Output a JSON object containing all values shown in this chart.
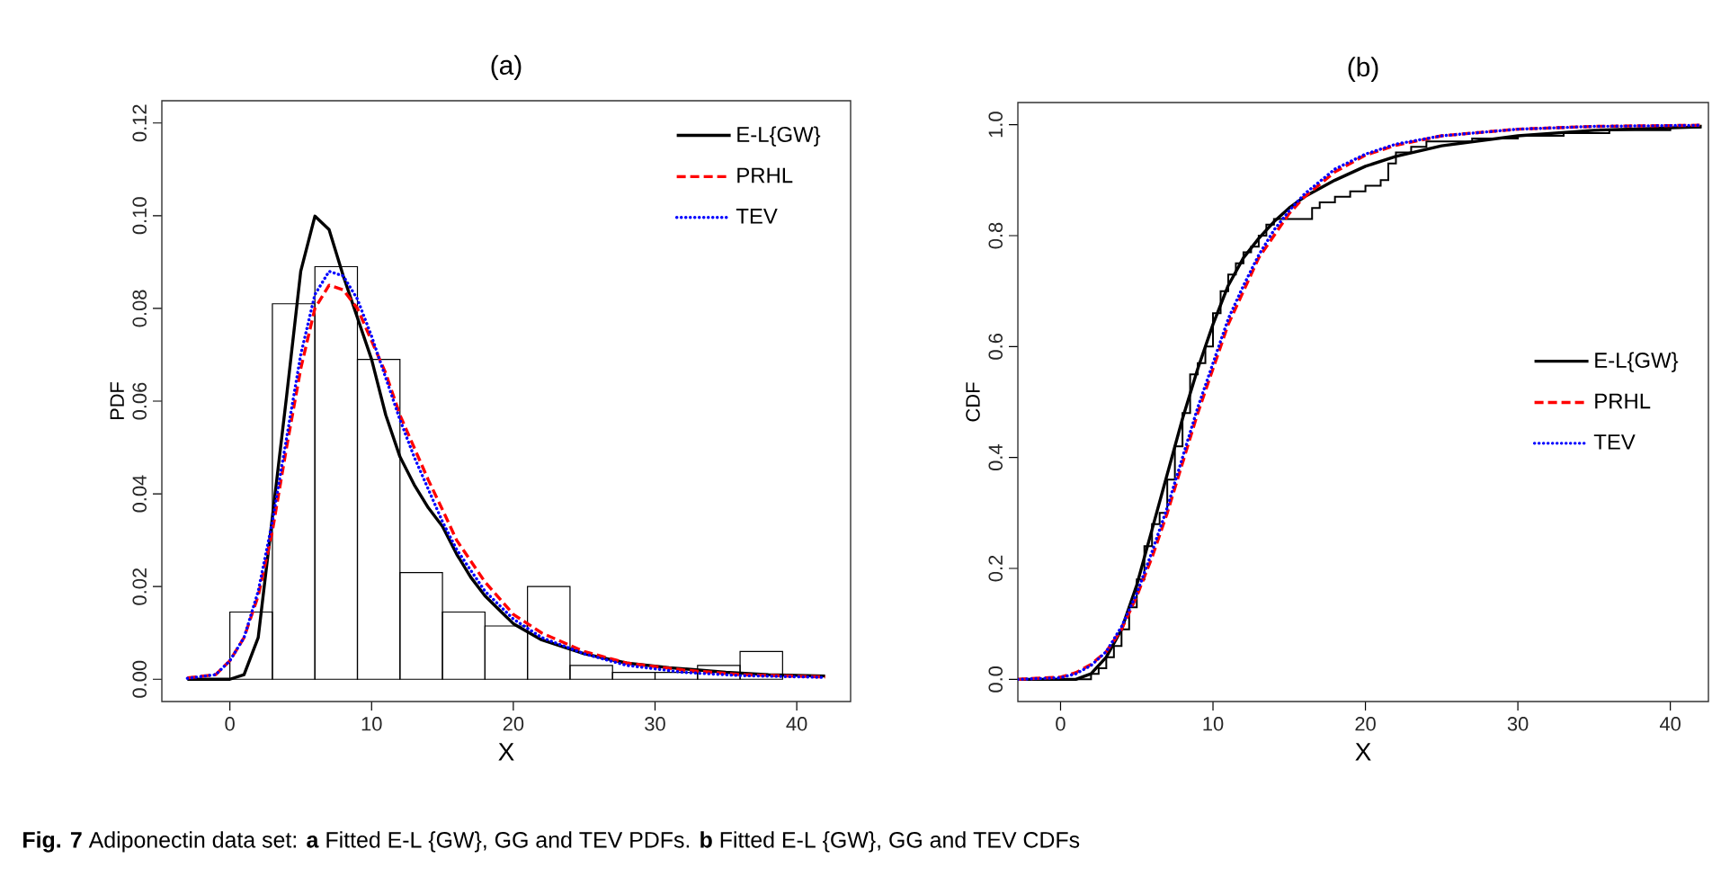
{
  "chart_data": [
    {
      "type": "histogram",
      "title": "(a)",
      "xlabel": "X",
      "ylabel": "PDF",
      "xlim": [
        -4.8,
        43.8
      ],
      "ylim": [
        -0.0048,
        0.1248
      ],
      "xticks": [
        0,
        10,
        20,
        30,
        40
      ],
      "yticks": [
        {
          "value": 0,
          "label": "0.00"
        },
        {
          "value": 0.02,
          "label": "0.02"
        },
        {
          "value": 0.04,
          "label": "0.04"
        },
        {
          "value": 0.06,
          "label": "0.06"
        },
        {
          "value": 0.08,
          "label": "0.08"
        },
        {
          "value": 0.1,
          "label": "0.10"
        },
        {
          "value": 0.12,
          "label": "0.12"
        }
      ],
      "legend": "top right",
      "series": [
        {
          "color": "#000000",
          "bins": [
            0,
            3,
            6,
            9,
            12,
            15,
            18,
            21,
            24,
            27,
            30,
            33,
            36,
            39
          ],
          "values": [
            0.0145,
            0.081,
            0.089,
            0.069,
            0.023,
            0.0145,
            0.0115,
            0.02,
            0.003,
            0.0015,
            0.0015,
            0.003,
            0.006
          ]
        },
        {
          "name": "E-L{GW}",
          "type": "line",
          "line_style": "solid",
          "color": "#000000",
          "x": [
            -3,
            0,
            1,
            2,
            3,
            4,
            5,
            6,
            7,
            8,
            9,
            10,
            11,
            12,
            13,
            14,
            15,
            16,
            17,
            18,
            19,
            20,
            22,
            25,
            28,
            31,
            35,
            38,
            42
          ],
          "values": [
            0,
            0,
            0.001,
            0.009,
            0.035,
            0.061,
            0.088,
            0.0999,
            0.097,
            0.087,
            0.078,
            0.069,
            0.057,
            0.048,
            0.042,
            0.037,
            0.033,
            0.027,
            0.022,
            0.018,
            0.015,
            0.012,
            0.0085,
            0.0055,
            0.0035,
            0.0025,
            0.0015,
            0.001,
            0.0007
          ]
        },
        {
          "name": "PRHL",
          "type": "line",
          "line_style": "dashed",
          "color": "#ff0000",
          "x": [
            -3,
            -1,
            0,
            1,
            2,
            3,
            4,
            5,
            6,
            7,
            8,
            9,
            10,
            11,
            12,
            13,
            14,
            15,
            16,
            18,
            20,
            22,
            25,
            28,
            32,
            36,
            42
          ],
          "values": [
            0.0003,
            0.001,
            0.004,
            0.009,
            0.018,
            0.032,
            0.05,
            0.067,
            0.08,
            0.085,
            0.084,
            0.08,
            0.073,
            0.066,
            0.057,
            0.05,
            0.043,
            0.0366,
            0.03,
            0.021,
            0.014,
            0.01,
            0.006,
            0.0035,
            0.002,
            0.001,
            0.0005
          ]
        },
        {
          "name": "TEV",
          "type": "line",
          "line_style": "dotted",
          "color": "#0000ff",
          "x": [
            -3,
            -1,
            0,
            1,
            2,
            3,
            4,
            5,
            6,
            7,
            8,
            9,
            10,
            11,
            12,
            13,
            14,
            15,
            16,
            18,
            20,
            22,
            25,
            28,
            32,
            36,
            42
          ],
          "values": [
            0.0002,
            0.001,
            0.004,
            0.009,
            0.019,
            0.034,
            0.052,
            0.07,
            0.083,
            0.088,
            0.087,
            0.082,
            0.074,
            0.065,
            0.056,
            0.048,
            0.041,
            0.034,
            0.028,
            0.019,
            0.013,
            0.009,
            0.0055,
            0.003,
            0.0015,
            0.0008,
            0.0004
          ]
        }
      ],
      "annotations": [
        "**Fig. 7** Adiponectin data set: **a** Fitted E-L {GW}, GG and TEV PDFs. **b** Fitted E-L {GW}, GG and TEV CDFs"
      ]
    },
    {
      "type": "line",
      "title": "(b)",
      "xlabel": "X",
      "ylabel": "CDF",
      "xlim": [
        -2.8,
        42.5
      ],
      "ylim": [
        -0.04,
        1.04
      ],
      "xticks": [
        0,
        10,
        20,
        30,
        40
      ],
      "yticks": [
        {
          "value": 0,
          "label": "0.0"
        },
        {
          "value": 0.2,
          "label": "0.2"
        },
        {
          "value": 0.4,
          "label": "0.4"
        },
        {
          "value": 0.6,
          "label": "0.6"
        },
        {
          "value": 0.8,
          "label": "0.8"
        },
        {
          "value": 1,
          "label": "1.0"
        }
      ],
      "legend": "right",
      "series": [
        {
          "type": "step",
          "color": "#000000",
          "x": [
            -2.8,
            1.8,
            2,
            2.5,
            3,
            3.5,
            4,
            4.5,
            5,
            5.5,
            6,
            6.5,
            7,
            7.5,
            8,
            8.5,
            9,
            9.5,
            10,
            10.5,
            11,
            11.5,
            12,
            12.5,
            13,
            13.5,
            14,
            16,
            16.5,
            17,
            18,
            19,
            20,
            21,
            21.5,
            22,
            23,
            24,
            27,
            30,
            33,
            36,
            40,
            42
          ],
          "values": [
            0,
            0,
            0.01,
            0.02,
            0.04,
            0.06,
            0.09,
            0.13,
            0.18,
            0.24,
            0.28,
            0.3,
            0.36,
            0.42,
            0.48,
            0.55,
            0.57,
            0.6,
            0.66,
            0.7,
            0.73,
            0.75,
            0.77,
            0.78,
            0.8,
            0.82,
            0.83,
            0.83,
            0.85,
            0.86,
            0.87,
            0.88,
            0.89,
            0.9,
            0.93,
            0.95,
            0.96,
            0.97,
            0.975,
            0.98,
            0.985,
            0.99,
            0.995,
            1.0
          ]
        },
        {
          "name": "E-L{GW}",
          "line_style": "solid",
          "color": "#000000",
          "x": [
            -2.8,
            1,
            2,
            3,
            4,
            5,
            6,
            7,
            8,
            9,
            10,
            11,
            12,
            13,
            14,
            15,
            16,
            18,
            20,
            22,
            25,
            30,
            35,
            42
          ],
          "values": [
            0,
            0,
            0.01,
            0.04,
            0.09,
            0.17,
            0.27,
            0.37,
            0.47,
            0.56,
            0.64,
            0.71,
            0.76,
            0.795,
            0.825,
            0.85,
            0.87,
            0.9,
            0.925,
            0.943,
            0.962,
            0.98,
            0.99,
            0.996
          ]
        },
        {
          "name": "PRHL",
          "line_style": "dashed",
          "color": "#ff0000",
          "x": [
            -2.8,
            0,
            1,
            2,
            3,
            4,
            5,
            6,
            7,
            8,
            9,
            10,
            11,
            12,
            13,
            14,
            15,
            16,
            18,
            20,
            22,
            25,
            30,
            35,
            42
          ],
          "values": [
            0,
            0.004,
            0.012,
            0.027,
            0.05,
            0.09,
            0.15,
            0.22,
            0.3,
            0.39,
            0.48,
            0.56,
            0.64,
            0.7,
            0.76,
            0.8,
            0.84,
            0.87,
            0.915,
            0.945,
            0.963,
            0.98,
            0.992,
            0.997,
            0.999
          ]
        },
        {
          "name": "TEV",
          "line_style": "dotted",
          "color": "#0000ff",
          "x": [
            -2.8,
            0,
            1,
            2,
            3,
            4,
            5,
            6,
            7,
            8,
            9,
            10,
            11,
            12,
            13,
            14,
            15,
            16,
            18,
            20,
            22,
            25,
            30,
            35,
            42
          ],
          "values": [
            0,
            0.003,
            0.01,
            0.025,
            0.05,
            0.095,
            0.155,
            0.23,
            0.31,
            0.4,
            0.49,
            0.57,
            0.65,
            0.71,
            0.765,
            0.81,
            0.845,
            0.875,
            0.92,
            0.947,
            0.965,
            0.98,
            0.992,
            0.997,
            0.999
          ]
        }
      ]
    }
  ]
}
